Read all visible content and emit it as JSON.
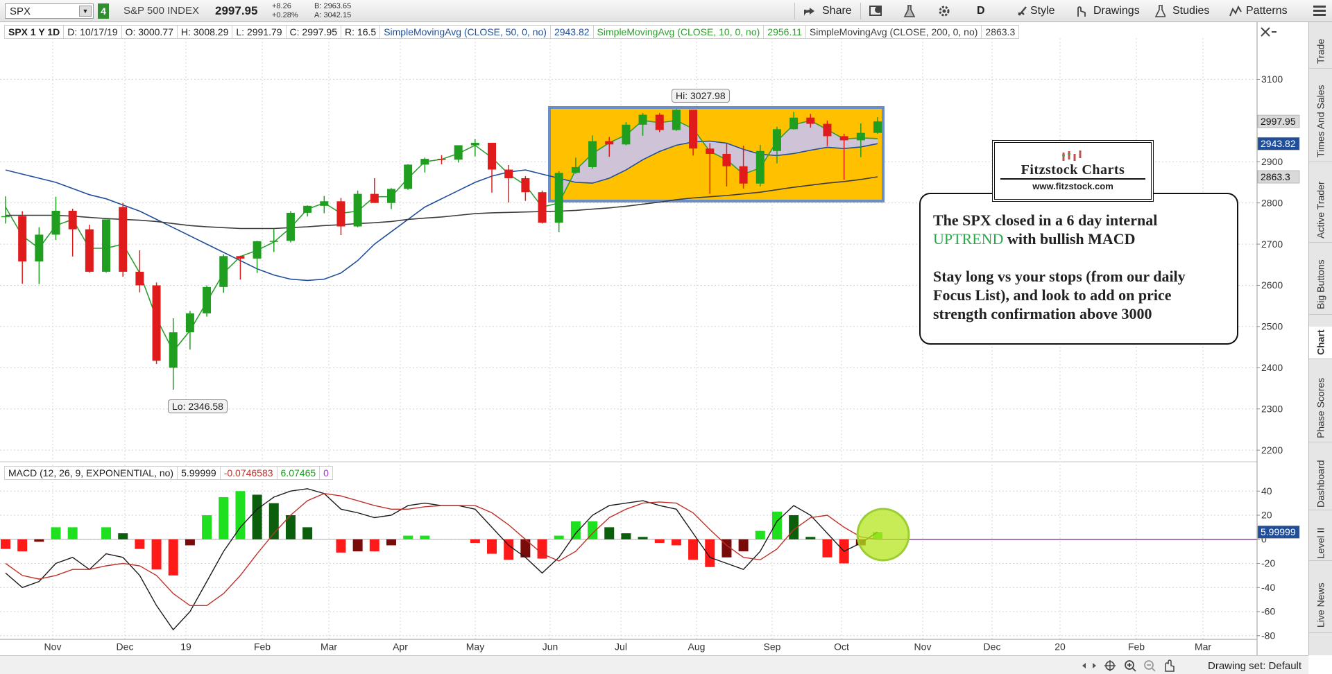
{
  "toolbar": {
    "symbol": "SPX",
    "link_group": "4",
    "description": "S&P 500 INDEX",
    "last": "2997.95",
    "change": "+8.26",
    "change_pct": "+0.28%",
    "bid": "B: 2963.65",
    "ask": "A: 3042.15",
    "buttons": [
      "Share",
      "D",
      "Style",
      "Drawings",
      "Studies",
      "Patterns"
    ]
  },
  "info_bar": [
    "SPX 1 Y 1D",
    "D: 10/17/19",
    "O: 3000.77",
    "H: 3008.29",
    "L: 2991.79",
    "C: 2997.95",
    "R: 16.5"
  ],
  "time_axis": {
    "labels": [
      "Nov",
      "Dec",
      "19",
      "Feb",
      "Mar",
      "Apr",
      "May",
      "Jun",
      "Jul",
      "Aug",
      "Sep",
      "Oct",
      "Nov",
      "Dec",
      "20",
      "Feb",
      "Mar"
    ]
  },
  "chart_data": [
    {
      "type": "candlestick",
      "hi_label": "Hi: 3027.98",
      "lo_label": "Lo: 2346.58",
      "up_color": "#1f9e1f",
      "down_color": "#e01b1b",
      "last_tag": true,
      "last_tag_color": "#d9d9d9",
      "open": [
        2767,
        2768,
        2658,
        2723,
        2781,
        2736,
        2633,
        2790,
        2633,
        2600,
        2400,
        2486,
        2532,
        2596,
        2671,
        2665,
        2707,
        2708,
        2776,
        2793,
        2804,
        2743,
        2822,
        2800,
        2834,
        2893,
        2907,
        2905,
        2940,
        2946,
        2881,
        2860,
        2826,
        2752,
        2873,
        2887,
        2950,
        2942,
        2990,
        3014,
        2977,
        3026,
        2932,
        2919,
        2889,
        2847,
        2926,
        2979,
        3007,
        2992,
        2962,
        2952,
        2970
      ],
      "high": [
        2816,
        2780,
        2741,
        2815,
        2786,
        2747,
        2760,
        2800,
        2685,
        2607,
        2520,
        2538,
        2600,
        2675,
        2672,
        2708,
        2738,
        2780,
        2794,
        2817,
        2812,
        2830,
        2860,
        2836,
        2894,
        2910,
        2916,
        2940,
        2955,
        2946,
        2892,
        2865,
        2830,
        2877,
        2910,
        2964,
        2960,
        2996,
        3018,
        3018,
        3027.98,
        3025,
        2945,
        2944,
        2939,
        2941,
        2985,
        3021,
        3016,
        3000,
        2968,
        2993,
        3008
      ],
      "low": [
        2750,
        2604,
        2603,
        2710,
        2670,
        2631,
        2631,
        2621,
        2583,
        2409,
        2346.58,
        2444,
        2524,
        2582,
        2614,
        2630,
        2681,
        2704,
        2767,
        2775,
        2722,
        2741,
        2800,
        2785,
        2832,
        2874,
        2894,
        2898,
        2913,
        2825,
        2801,
        2805,
        2750,
        2729,
        2871,
        2883,
        2912,
        2940,
        2963,
        2972,
        2975,
        2915,
        2822,
        2840,
        2835,
        2840,
        2896,
        2978,
        2983,
        2938,
        2856,
        2911,
        2968
      ],
      "close": [
        2768,
        2658,
        2723,
        2781,
        2736,
        2633,
        2760,
        2633,
        2600,
        2417,
        2486,
        2532,
        2596,
        2671,
        2665,
        2707,
        2708,
        2776,
        2793,
        2804,
        2743,
        2822,
        2800,
        2834,
        2893,
        2907,
        2905,
        2940,
        2946,
        2881,
        2860,
        2826,
        2752,
        2873,
        2887,
        2950,
        2942,
        2990,
        3014,
        2977,
        3026,
        2932,
        2919,
        2889,
        2847,
        2926,
        2979,
        3007,
        2992,
        2962,
        2952,
        2970,
        2997.95
      ],
      "series": [
        {
          "name": "SimpleMovingAvg (CLOSE, 50, 0, no)",
          "color": "#1f4e9c",
          "show_tag": true,
          "tag_color": "#1f4e9c",
          "values": [
            2880,
            2870,
            2860,
            2850,
            2835,
            2820,
            2810,
            2795,
            2780,
            2760,
            2740,
            2720,
            2700,
            2680,
            2660,
            2640,
            2625,
            2615,
            2612,
            2615,
            2630,
            2660,
            2700,
            2730,
            2760,
            2790,
            2810,
            2830,
            2850,
            2865,
            2875,
            2880,
            2870,
            2860,
            2850,
            2848,
            2860,
            2880,
            2905,
            2925,
            2940,
            2948,
            2950,
            2945,
            2930,
            2918,
            2915,
            2920,
            2928,
            2935,
            2932,
            2936,
            2943.82
          ]
        },
        {
          "name": "SimpleMovingAvg (CLOSE, 10, 0, no)",
          "color": "#2e9e2e",
          "show_tag": false,
          "values": [
            2790,
            2720,
            2690,
            2745,
            2760,
            2690,
            2690,
            2700,
            2630,
            2520,
            2440,
            2490,
            2560,
            2630,
            2670,
            2685,
            2705,
            2740,
            2785,
            2800,
            2775,
            2780,
            2815,
            2815,
            2860,
            2900,
            2906,
            2920,
            2940,
            2910,
            2870,
            2843,
            2790,
            2800,
            2880,
            2920,
            2946,
            2965,
            3000,
            2995,
            3000,
            2980,
            2925,
            2905,
            2870,
            2885,
            2950,
            2990,
            3000,
            2978,
            2955,
            2958,
            2956.11
          ]
        },
        {
          "name": "SimpleMovingAvg (CLOSE, 200, 0, no)",
          "color": "#3c3c3c",
          "show_tag": true,
          "tag_color": "#d9d9d9",
          "values": [
            2770,
            2770,
            2770,
            2770,
            2768,
            2765,
            2762,
            2760,
            2758,
            2755,
            2750,
            2745,
            2742,
            2740,
            2738,
            2738,
            2738,
            2740,
            2742,
            2745,
            2747,
            2750,
            2752,
            2755,
            2760,
            2763,
            2766,
            2770,
            2774,
            2776,
            2777,
            2778,
            2779,
            2780,
            2782,
            2785,
            2788,
            2792,
            2797,
            2802,
            2808,
            2812,
            2815,
            2818,
            2822,
            2826,
            2832,
            2838,
            2843,
            2848,
            2852,
            2857,
            2863.3
          ]
        }
      ],
      "ylim": [
        2175,
        3200
      ],
      "yticks": [
        2200,
        2300,
        2400,
        2500,
        2600,
        2700,
        2800,
        2900,
        3100
      ],
      "grid": true
    },
    {
      "type": "macd",
      "title": "MACD (12, 26, 9, EXPONENTIAL, no)",
      "zero_line": 0,
      "zero_color": "#9933cc",
      "hist_colors": {
        "up": "#1fe01f",
        "up_weak": "#0b5e0b",
        "down": "#ff1a1a",
        "down_weak": "#7a0b0b"
      },
      "series": [
        {
          "color": "#1a1a1a",
          "show_tag": true,
          "tag_color": "#1f4e9c",
          "values": [
            -28,
            -40,
            -35,
            -20,
            -15,
            -25,
            -12,
            -15,
            -30,
            -55,
            -75,
            -60,
            -35,
            -10,
            10,
            25,
            35,
            40,
            42,
            38,
            25,
            22,
            18,
            20,
            28,
            30,
            28,
            28,
            25,
            10,
            -5,
            -15,
            -28,
            -15,
            5,
            20,
            28,
            30,
            32,
            28,
            25,
            5,
            -15,
            -20,
            -25,
            -10,
            15,
            28,
            20,
            5,
            -10,
            -3,
            5.99999
          ]
        },
        {
          "color": "#c0302a",
          "show_tag": false,
          "values": [
            -20,
            -30,
            -33,
            -30,
            -25,
            -25,
            -22,
            -20,
            -22,
            -30,
            -45,
            -55,
            -55,
            -45,
            -30,
            -12,
            5,
            20,
            32,
            38,
            36,
            32,
            28,
            25,
            25,
            27,
            28,
            28,
            28,
            22,
            12,
            0,
            -12,
            -18,
            -10,
            5,
            18,
            25,
            30,
            31,
            30,
            22,
            8,
            -5,
            -15,
            -17,
            -8,
            8,
            18,
            20,
            10,
            2,
            -0.0746583
          ]
        }
      ],
      "histogram": [
        -8,
        -10,
        -2,
        10,
        10,
        0,
        10,
        5,
        -8,
        -25,
        -30,
        -5,
        20,
        35,
        40,
        37,
        30,
        20,
        10,
        0,
        -11,
        -10,
        -10,
        -5,
        3,
        3,
        0,
        0,
        -3,
        -12,
        -17,
        -15,
        -16,
        3,
        15,
        15,
        10,
        5,
        2,
        -3,
        -5,
        -17,
        -23,
        -15,
        -10,
        7,
        23,
        20,
        2,
        -15,
        -20,
        -5,
        6.07465
      ],
      "ylim": [
        -83,
        62
      ],
      "yticks": [
        40,
        20,
        0,
        -20,
        -40,
        -60,
        -80
      ],
      "grid": true
    }
  ],
  "logo": {
    "title": "Fitzstock Charts",
    "url": "www.fitzstock.com"
  },
  "annotation": {
    "line1": "The SPX closed in a 6 day internal",
    "highlight": "UPTREND",
    "line2_rest": " with bullish MACD",
    "paragraph2": "Stay long vs your stops (from our daily Focus List), and look to add on price strength confirmation above 3000"
  },
  "sidebar_tabs": [
    "Trade",
    "Times And Sales",
    "Active Trader",
    "Big Buttons",
    "Chart",
    "Phase Scores",
    "Dashboard",
    "Level II",
    "Live News"
  ],
  "status_bar": {
    "drawing_set": "Drawing set: Default"
  }
}
